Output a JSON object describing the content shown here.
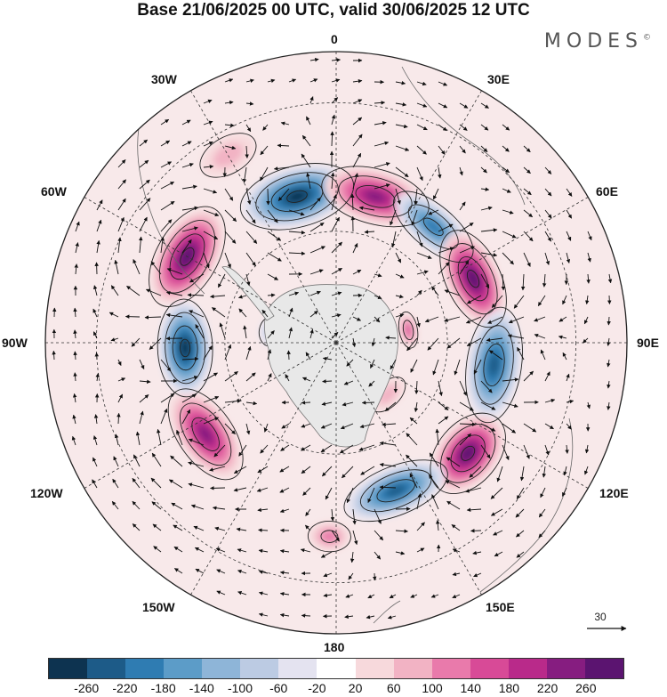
{
  "title": "Base 21/06/2025 00 UTC, valid 30/06/2025 12 UTC",
  "brand": "MODES",
  "brand_mark": "©",
  "longitude_labels": [
    "0",
    "30E",
    "60E",
    "90E",
    "120E",
    "150E",
    "180",
    "150W",
    "120W",
    "90W",
    "60W",
    "30W"
  ],
  "reference_vector": {
    "value": "30",
    "icon": "arrow-right-icon"
  },
  "colorbar": {
    "ticks": [
      "-260",
      "-220",
      "-180",
      "-140",
      "-100",
      "-60",
      "-20",
      "20",
      "60",
      "100",
      "140",
      "180",
      "220",
      "260"
    ],
    "colors": [
      "#0d3350",
      "#1d5b88",
      "#2f7cb2",
      "#5c9cc8",
      "#8eb5d8",
      "#bccbe3",
      "#e4e3f0",
      "#ffffff",
      "#f7d9dc",
      "#f2b3c4",
      "#e97aab",
      "#d84a97",
      "#b92a8a",
      "#861d80",
      "#5b1470"
    ]
  },
  "projection": "south-polar-stereographic",
  "anomalies": [
    {
      "lon": -15,
      "lat": -50,
      "value": -250,
      "rx": 0.19,
      "ry": 0.1
    },
    {
      "lon": 15,
      "lat": -50,
      "value": 200,
      "rx": 0.18,
      "ry": 0.09
    },
    {
      "lon": 40,
      "lat": -50,
      "value": -180,
      "rx": 0.16,
      "ry": 0.07
    },
    {
      "lon": 65,
      "lat": -50,
      "value": 240,
      "rx": 0.17,
      "ry": 0.09
    },
    {
      "lon": 98,
      "lat": -48,
      "value": -220,
      "rx": 0.19,
      "ry": 0.09
    },
    {
      "lon": 130,
      "lat": -45,
      "value": 260,
      "rx": 0.15,
      "ry": 0.1
    },
    {
      "lon": 158,
      "lat": -48,
      "value": -210,
      "rx": 0.18,
      "ry": 0.08
    },
    {
      "lon": -178,
      "lat": -40,
      "value": 90,
      "rx": 0.07,
      "ry": 0.05
    },
    {
      "lon": -125,
      "lat": -48,
      "value": 200,
      "rx": 0.17,
      "ry": 0.09
    },
    {
      "lon": -92,
      "lat": -50,
      "value": -250,
      "rx": 0.16,
      "ry": 0.09
    },
    {
      "lon": -60,
      "lat": -45,
      "value": 250,
      "rx": 0.18,
      "ry": 0.1
    },
    {
      "lon": -30,
      "lat": -35,
      "value": 60,
      "rx": 0.1,
      "ry": 0.06
    },
    {
      "lon": 80,
      "lat": -70,
      "value": 120,
      "rx": 0.06,
      "ry": 0.03
    },
    {
      "lon": -80,
      "lat": -72,
      "value": -60,
      "rx": 0.05,
      "ry": 0.04
    },
    {
      "lon": 135,
      "lat": -70,
      "value": 60,
      "rx": 0.07,
      "ry": 0.04
    }
  ]
}
